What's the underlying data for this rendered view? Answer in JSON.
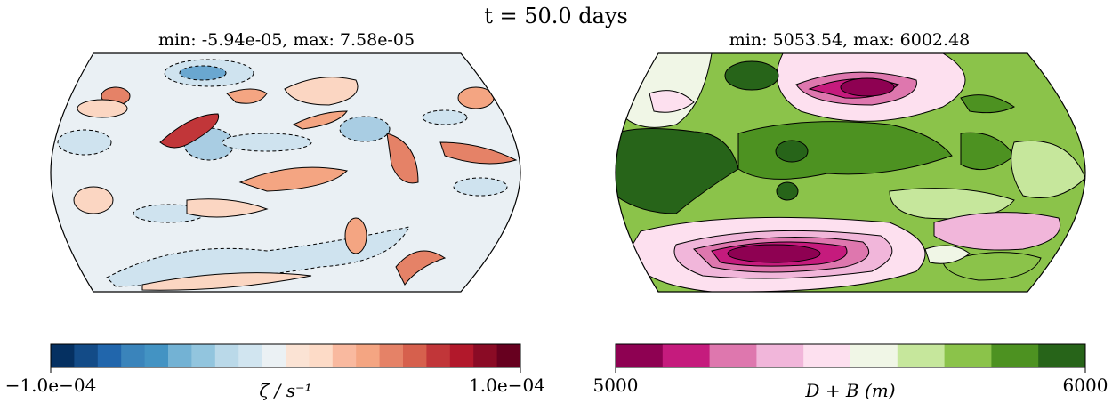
{
  "figure": {
    "suptitle": "t = 50.0 days"
  },
  "chart_data": [
    {
      "type": "heatmap",
      "title": "min: -5.94e-05, max: 7.58e-05",
      "map_projection": "Robinson",
      "field": "relative vorticity",
      "min": -5.94e-05,
      "max": 7.58e-05,
      "colormap": "RdBu_r",
      "colorbar": {
        "label": "ζ / s⁻¹",
        "vmin": -0.0001,
        "vmax": 0.0001,
        "n_levels": 20,
        "tick_labels": [
          "−1.0e−04",
          "1.0e−04"
        ],
        "colors": [
          "#053061",
          "#134b87",
          "#2166ac",
          "#3a84bb",
          "#4393c3",
          "#73b2d4",
          "#92c5de",
          "#bad9e9",
          "#d1e5f0",
          "#ebf1f4",
          "#fbe3d4",
          "#fddbc7",
          "#f9b99f",
          "#f4a582",
          "#e58267",
          "#d6604d",
          "#c13639",
          "#b2182b",
          "#8a0b25",
          "#67001f"
        ]
      }
    },
    {
      "type": "heatmap",
      "title": "min: 5053.54, max: 6002.48",
      "map_projection": "Robinson",
      "field": "D + B",
      "min": 5053.54,
      "max": 6002.48,
      "colormap": "PiYG",
      "colorbar": {
        "label": "D + B (m)",
        "vmin": 5000,
        "vmax": 6000,
        "n_levels": 10,
        "tick_labels": [
          "5000",
          "6000"
        ],
        "colors": [
          "#8e0152",
          "#c51b7d",
          "#de77ae",
          "#f1b6da",
          "#fde0ef",
          "#f0f6e6",
          "#c6e79c",
          "#8bc34a",
          "#4d9221",
          "#276419"
        ]
      }
    }
  ]
}
